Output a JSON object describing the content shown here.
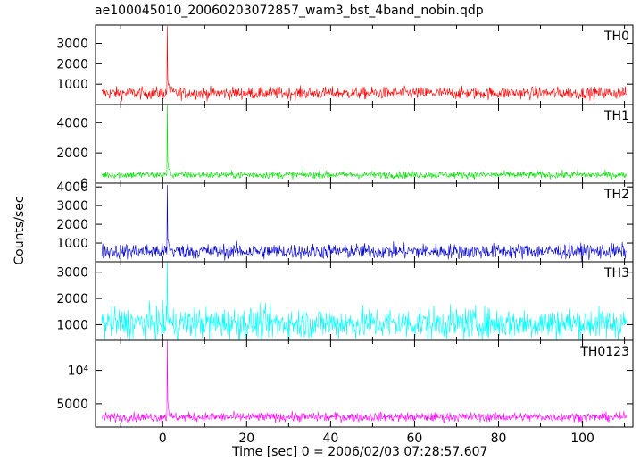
{
  "chart_data": {
    "type": "line",
    "title": "ae100045010_20060203072857_wam3_bst_4band_nobin.qdp",
    "xlabel": "Time [sec] 0 = 2006/02/03 07:28:57.607",
    "ylabel": "Counts/sec",
    "xlim": [
      -16,
      112
    ],
    "x_ticks": [
      0,
      20,
      40,
      60,
      80,
      100
    ],
    "grid": false,
    "legend": "none",
    "panels": [
      {
        "name": "TH0",
        "color": "#ff0000",
        "ylim": [
          0,
          3900
        ],
        "yticks": [
          {
            "v": 1000,
            "label": "1000"
          },
          {
            "v": 2000,
            "label": "2000"
          },
          {
            "v": 3000,
            "label": "3000"
          }
        ],
        "baseline": 560,
        "noise": 150,
        "burst_x": 1.0,
        "burst_peak": 3850
      },
      {
        "name": "TH1",
        "color": "#00e000",
        "ylim": [
          0,
          5200
        ],
        "yticks": [
          {
            "v": 0,
            "label": "0"
          },
          {
            "v": 2000,
            "label": "2000"
          },
          {
            "v": 4000,
            "label": "4000"
          }
        ],
        "baseline": 550,
        "noise": 120,
        "burst_x": 1.0,
        "burst_peak": 5200
      },
      {
        "name": "TH2",
        "color": "#0000cc",
        "ylim": [
          0,
          4200
        ],
        "yticks": [
          {
            "v": 1000,
            "label": "1000"
          },
          {
            "v": 2000,
            "label": "2000"
          },
          {
            "v": 3000,
            "label": "3000"
          },
          {
            "v": 4000,
            "label": "4000"
          }
        ],
        "baseline": 560,
        "noise": 200,
        "burst_x": 1.0,
        "burst_peak": 4100
      },
      {
        "name": "TH3",
        "color": "#00ffff",
        "ylim": [
          400,
          3400
        ],
        "yticks": [
          {
            "v": 1000,
            "label": "1000"
          },
          {
            "v": 2000,
            "label": "2000"
          },
          {
            "v": 3000,
            "label": "3000"
          }
        ],
        "baseline": 1050,
        "noise": 300,
        "burst_x": 1.0,
        "burst_peak": 3400
      },
      {
        "name": "TH0123",
        "color": "#ff00ff",
        "ylim": [
          1500,
          14500
        ],
        "yticks": [
          {
            "v": 5000,
            "label": "5000"
          },
          {
            "v": 10000,
            "label": "10⁴"
          }
        ],
        "baseline": 3000,
        "noise": 350,
        "burst_x": 1.0,
        "burst_peak": 14500
      }
    ]
  }
}
